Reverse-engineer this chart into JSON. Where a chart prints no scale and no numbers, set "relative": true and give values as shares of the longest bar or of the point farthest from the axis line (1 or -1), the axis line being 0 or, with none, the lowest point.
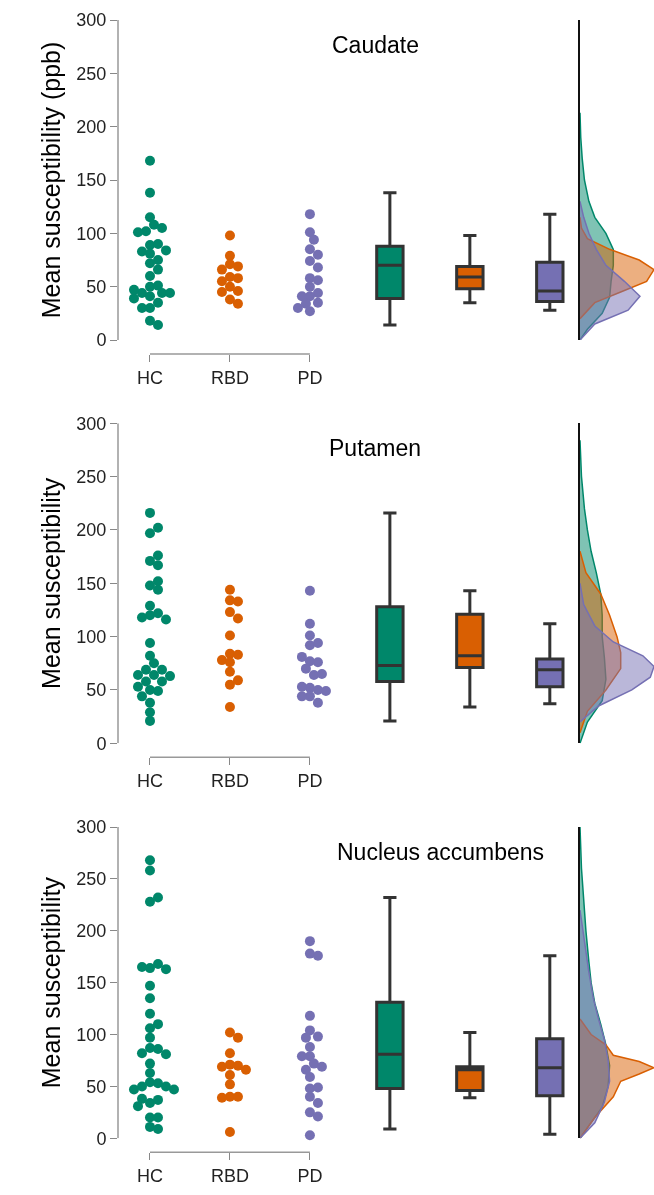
{
  "chart_data": [
    {
      "type": "scatter",
      "title": "Caudate",
      "ylabel": "Mean susceptibility (ppb)",
      "categories": [
        "HC",
        "RBD",
        "PD",
        null,
        null,
        null
      ],
      "ylim": [
        0,
        300
      ],
      "yticks": [
        0,
        50,
        100,
        150,
        200,
        250,
        300
      ],
      "marker": "circle",
      "series": [
        {
          "color": "#00876a",
          "x": [
            "HC",
            "HC",
            "HC",
            "HC",
            "HC",
            "HC",
            "HC",
            "HC",
            "HC",
            "HC",
            "HC",
            "HC",
            "HC",
            "HC",
            "HC",
            "HC",
            "HC",
            "HC",
            "HC",
            "HC",
            "HC",
            "HC",
            "HC",
            "HC",
            "HC",
            "HC",
            "HC",
            "HC",
            "HC"
          ],
          "values": [
            168,
            138,
            115,
            108,
            102,
            105,
            101,
            89,
            90,
            83,
            84,
            81,
            75,
            72,
            66,
            60,
            50,
            51,
            44,
            44,
            41,
            39,
            35,
            30,
            30,
            18,
            14,
            47,
            44
          ]
        },
        {
          "color": "#d95f02",
          "x": [
            "RBD",
            "RBD",
            "RBD",
            "RBD",
            "RBD",
            "RBD",
            "RBD",
            "RBD",
            "RBD",
            "RBD",
            "RBD",
            "RBD",
            "RBD"
          ],
          "values": [
            98,
            79,
            71,
            69,
            66,
            59,
            58,
            55,
            50,
            46,
            45,
            38,
            34
          ]
        },
        {
          "color": "#7570b3",
          "x": [
            "PD",
            "PD",
            "PD",
            "PD",
            "PD",
            "PD",
            "PD",
            "PD",
            "PD",
            "PD",
            "PD",
            "PD",
            "PD",
            "PD",
            "PD",
            "PD",
            "PD"
          ],
          "values": [
            118,
            101,
            94,
            85,
            80,
            74,
            68,
            58,
            56,
            50,
            44,
            41,
            41,
            35,
            34,
            30,
            27
          ]
        },
        {
          "type": "box",
          "color": "#00876a",
          "boxes": [
            null,
            null,
            null,
            {
              "low": 14,
              "q1": 39,
              "median": 70,
              "q3": 88,
              "high": 138
            },
            null,
            null
          ]
        },
        {
          "type": "box",
          "color": "#d95f02",
          "boxes": [
            null,
            null,
            null,
            null,
            {
              "low": 35,
              "q1": 48,
              "median": 59,
              "q3": 69,
              "high": 98
            },
            null
          ]
        },
        {
          "type": "box",
          "color": "#7570b3",
          "boxes": [
            null,
            null,
            null,
            null,
            null,
            {
              "low": 28,
              "q1": 36,
              "median": 46,
              "q3": 73,
              "high": 118
            }
          ]
        }
      ]
    },
    {
      "type": "area",
      "orientation": "horizontal",
      "relative": true,
      "ylim": [
        0,
        300
      ],
      "series": [
        {
          "color": "#00876a",
          "x": [
            0,
            10,
            25,
            40,
            55,
            70,
            85,
            100,
            115,
            130,
            150,
            170,
            190,
            213
          ],
          "values": [
            0,
            0.1,
            0.3,
            0.4,
            0.42,
            0.45,
            0.45,
            0.35,
            0.2,
            0.12,
            0.06,
            0.03,
            0.01,
            0
          ]
        },
        {
          "color": "#d95f02",
          "x": [
            20,
            35,
            45,
            55,
            66,
            75,
            85,
            95,
            105,
            115
          ],
          "values": [
            0,
            0.2,
            0.55,
            0.9,
            1,
            0.8,
            0.4,
            0.1,
            0.02,
            0
          ]
        },
        {
          "color": "#7570b3",
          "x": [
            0,
            15,
            28,
            41,
            55,
            70,
            85,
            100,
            115,
            130
          ],
          "values": [
            0,
            0.2,
            0.65,
            0.81,
            0.6,
            0.35,
            0.22,
            0.12,
            0.05,
            0
          ]
        }
      ]
    },
    {
      "type": "scatter",
      "title": "Putamen",
      "ylabel": "Mean susceptibility",
      "categories": [
        "HC",
        "RBD",
        "PD",
        null,
        null,
        null
      ],
      "ylim": [
        0,
        300
      ],
      "yticks": [
        0,
        50,
        100,
        150,
        200,
        250,
        300
      ],
      "marker": "circle",
      "series": [
        {
          "color": "#00876a",
          "x": [
            "HC",
            "HC",
            "HC",
            "HC",
            "HC",
            "HC",
            "HC",
            "HC",
            "HC",
            "HC",
            "HC",
            "HC",
            "HC",
            "HC",
            "HC",
            "HC",
            "HC",
            "HC",
            "HC",
            "HC",
            "HC",
            "HC",
            "HC",
            "HC",
            "HC",
            "HC",
            "HC",
            "HC",
            "HC",
            "HC",
            "HC"
          ],
          "values": [
            216,
            197,
            202,
            171,
            176,
            167,
            148,
            152,
            144,
            129,
            120,
            122,
            118,
            116,
            94,
            82,
            75,
            69,
            69,
            64,
            64,
            63,
            58,
            58,
            50,
            53,
            49,
            44,
            38,
            29,
            21
          ]
        },
        {
          "color": "#d95f02",
          "x": [
            "RBD",
            "RBD",
            "RBD",
            "RBD",
            "RBD",
            "RBD",
            "RBD",
            "RBD",
            "RBD",
            "RBD",
            "RBD",
            "RBD",
            "RBD",
            "RBD"
          ],
          "values": [
            144,
            134,
            133,
            123,
            117,
            101,
            84,
            83,
            78,
            76,
            67,
            55,
            59,
            34
          ]
        },
        {
          "color": "#7570b3",
          "x": [
            "PD",
            "PD",
            "PD",
            "PD",
            "PD",
            "PD",
            "PD",
            "PD",
            "PD",
            "PD",
            "PD",
            "PD",
            "PD",
            "PD",
            "PD",
            "PD",
            "PD",
            "PD"
          ],
          "values": [
            143,
            112,
            101,
            92,
            94,
            77,
            76,
            81,
            70,
            64,
            65,
            52,
            50,
            53,
            49,
            44,
            44,
            38
          ]
        },
        {
          "type": "box",
          "color": "#00876a",
          "boxes": [
            null,
            null,
            null,
            {
              "low": 21,
              "q1": 58,
              "median": 73,
              "q3": 128,
              "high": 216
            },
            null,
            null
          ]
        },
        {
          "type": "box",
          "color": "#d95f02",
          "boxes": [
            null,
            null,
            null,
            null,
            {
              "low": 34,
              "q1": 71,
              "median": 82,
              "q3": 121,
              "high": 143
            },
            null
          ]
        },
        {
          "type": "box",
          "color": "#7570b3",
          "boxes": [
            null,
            null,
            null,
            null,
            null,
            {
              "low": 37,
              "q1": 53,
              "median": 69,
              "q3": 79,
              "high": 112
            }
          ]
        }
      ]
    },
    {
      "type": "area",
      "orientation": "horizontal",
      "relative": true,
      "ylim": [
        0,
        300
      ],
      "series": [
        {
          "color": "#00876a",
          "x": [
            0,
            20,
            40,
            60,
            80,
            100,
            120,
            140,
            160,
            180,
            200,
            220,
            250,
            284
          ],
          "values": [
            0,
            0.1,
            0.3,
            0.35,
            0.33,
            0.3,
            0.3,
            0.28,
            0.22,
            0.15,
            0.1,
            0.06,
            0.02,
            0
          ]
        },
        {
          "color": "#d95f02",
          "x": [
            10,
            30,
            50,
            70,
            85,
            100,
            120,
            140,
            160,
            180
          ],
          "values": [
            0,
            0.1,
            0.35,
            0.55,
            0.55,
            0.5,
            0.4,
            0.28,
            0.08,
            0
          ]
        },
        {
          "color": "#7570b3",
          "x": [
            20,
            35,
            50,
            62,
            72,
            82,
            95,
            110,
            130,
            150
          ],
          "values": [
            0,
            0.25,
            0.7,
            0.95,
            1,
            0.85,
            0.45,
            0.2,
            0.05,
            0
          ]
        }
      ]
    },
    {
      "type": "scatter",
      "title": "Nucleus accumbens",
      "ylabel": "Mean susceptibility",
      "categories": [
        "HC",
        "RBD",
        "PD",
        null,
        null,
        null
      ],
      "ylim": [
        0,
        300
      ],
      "yticks": [
        0,
        50,
        100,
        150,
        200,
        250,
        300
      ],
      "marker": "circle",
      "series": [
        {
          "color": "#00876a",
          "x": [
            "HC",
            "HC",
            "HC",
            "HC",
            "HC",
            "HC",
            "HC",
            "HC",
            "HC",
            "HC",
            "HC",
            "HC",
            "HC",
            "HC",
            "HC",
            "HC",
            "HC",
            "HC",
            "HC",
            "HC",
            "HC",
            "HC",
            "HC",
            "HC",
            "HC",
            "HC",
            "HC",
            "HC",
            "HC",
            "HC",
            "HC",
            "HC",
            "HC",
            "HC"
          ],
          "values": [
            268,
            258,
            228,
            232,
            164,
            168,
            165,
            163,
            147,
            135,
            120,
            106,
            110,
            97,
            87,
            86,
            82,
            81,
            72,
            63,
            54,
            53,
            50,
            50,
            47,
            47,
            34,
            37,
            38,
            31,
            20,
            20,
            11,
            9
          ]
        },
        {
          "color": "#d95f02",
          "x": [
            "RBD",
            "RBD",
            "RBD",
            "RBD",
            "RBD",
            "RBD",
            "RBD",
            "RBD",
            "RBD",
            "RBD",
            "RBD",
            "RBD",
            "RBD"
          ],
          "values": [
            102,
            97,
            82,
            71,
            70,
            69,
            66,
            61,
            52,
            40,
            40,
            39,
            6
          ]
        },
        {
          "color": "#7570b3",
          "x": [
            "PD",
            "PD",
            "PD",
            "PD",
            "PD",
            "PD",
            "PD",
            "PD",
            "PD",
            "PD",
            "PD",
            "PD",
            "PD",
            "PD",
            "PD",
            "PD",
            "PD",
            "PD",
            "PD",
            "PD",
            "PD"
          ],
          "values": [
            190,
            178,
            176,
            118,
            104,
            98,
            97,
            88,
            79,
            79,
            72,
            66,
            69,
            59,
            48,
            49,
            40,
            34,
            25,
            21,
            3
          ]
        },
        {
          "type": "box",
          "color": "#00876a",
          "boxes": [
            null,
            null,
            null,
            {
              "low": 9,
              "q1": 48,
              "median": 81,
              "q3": 131,
              "high": 232
            },
            null,
            null
          ]
        },
        {
          "type": "box",
          "color": "#d95f02",
          "boxes": [
            null,
            null,
            null,
            null,
            {
              "low": 39,
              "q1": 46,
              "median": 66,
              "q3": 69,
              "high": 102
            },
            null
          ]
        },
        {
          "type": "box",
          "color": "#7570b3",
          "boxes": [
            null,
            null,
            null,
            null,
            null,
            {
              "low": 4,
              "q1": 41,
              "median": 68,
              "q3": 96,
              "high": 176
            }
          ]
        }
      ]
    },
    {
      "type": "area",
      "orientation": "horizontal",
      "relative": true,
      "ylim": [
        0,
        300
      ],
      "series": [
        {
          "color": "#00876a",
          "x": [
            0,
            10,
            30,
            50,
            70,
            90,
            110,
            130,
            150,
            170,
            200,
            230,
            260,
            300
          ],
          "values": [
            0,
            0.1,
            0.3,
            0.38,
            0.4,
            0.35,
            0.28,
            0.2,
            0.15,
            0.12,
            0.08,
            0.05,
            0.02,
            0
          ]
        },
        {
          "color": "#d95f02",
          "x": [
            0,
            20,
            40,
            55,
            62,
            68,
            74,
            80,
            90,
            100,
            115
          ],
          "values": [
            0,
            0.2,
            0.45,
            0.55,
            0.8,
            1,
            0.8,
            0.45,
            0.35,
            0.15,
            0
          ]
        },
        {
          "color": "#7570b3",
          "x": [
            0,
            15,
            35,
            55,
            75,
            95,
            115,
            135,
            160,
            190,
            220
          ],
          "values": [
            0,
            0.2,
            0.33,
            0.4,
            0.38,
            0.33,
            0.25,
            0.18,
            0.12,
            0.06,
            0
          ]
        }
      ]
    }
  ]
}
